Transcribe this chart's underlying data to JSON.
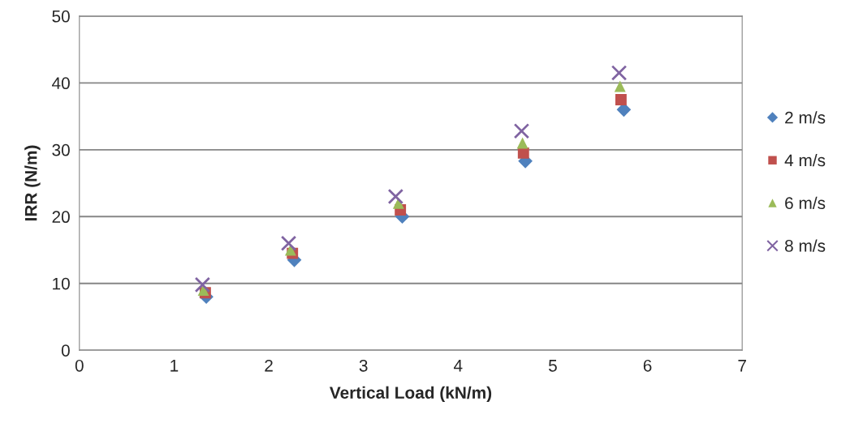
{
  "chart_data": {
    "type": "scatter",
    "xlabel": "Vertical Load (kN/m)",
    "ylabel": "IRR (N/m)",
    "xlim": [
      0,
      7
    ],
    "xticks": [
      0,
      1,
      2,
      3,
      4,
      5,
      6,
      7
    ],
    "ylim": [
      0,
      50
    ],
    "yticks": [
      0,
      10,
      20,
      30,
      40,
      50
    ],
    "grid": "y",
    "legend": "right",
    "series": [
      {
        "name": "2 m/s",
        "color": "#4f81bd",
        "marker": "diamond",
        "x": [
          1.34,
          2.27,
          3.41,
          4.71,
          5.75
        ],
        "values": [
          8.0,
          13.5,
          20.0,
          28.3,
          36.0
        ]
      },
      {
        "name": "4 m/s",
        "color": "#c0504d",
        "marker": "square",
        "x": [
          1.33,
          2.25,
          3.39,
          4.69,
          5.72
        ],
        "values": [
          8.6,
          14.5,
          21.0,
          29.5,
          37.5
        ]
      },
      {
        "name": "6 m/s",
        "color": "#9bbb59",
        "marker": "triangle",
        "x": [
          1.31,
          2.23,
          3.37,
          4.68,
          5.71
        ],
        "values": [
          9.0,
          15.0,
          22.0,
          31.0,
          39.5
        ]
      },
      {
        "name": "8 m/s",
        "color": "#8064a2",
        "marker": "cross",
        "x": [
          1.3,
          2.21,
          3.34,
          4.67,
          5.7
        ],
        "values": [
          9.8,
          16.0,
          23.0,
          32.8,
          41.5
        ]
      }
    ]
  }
}
